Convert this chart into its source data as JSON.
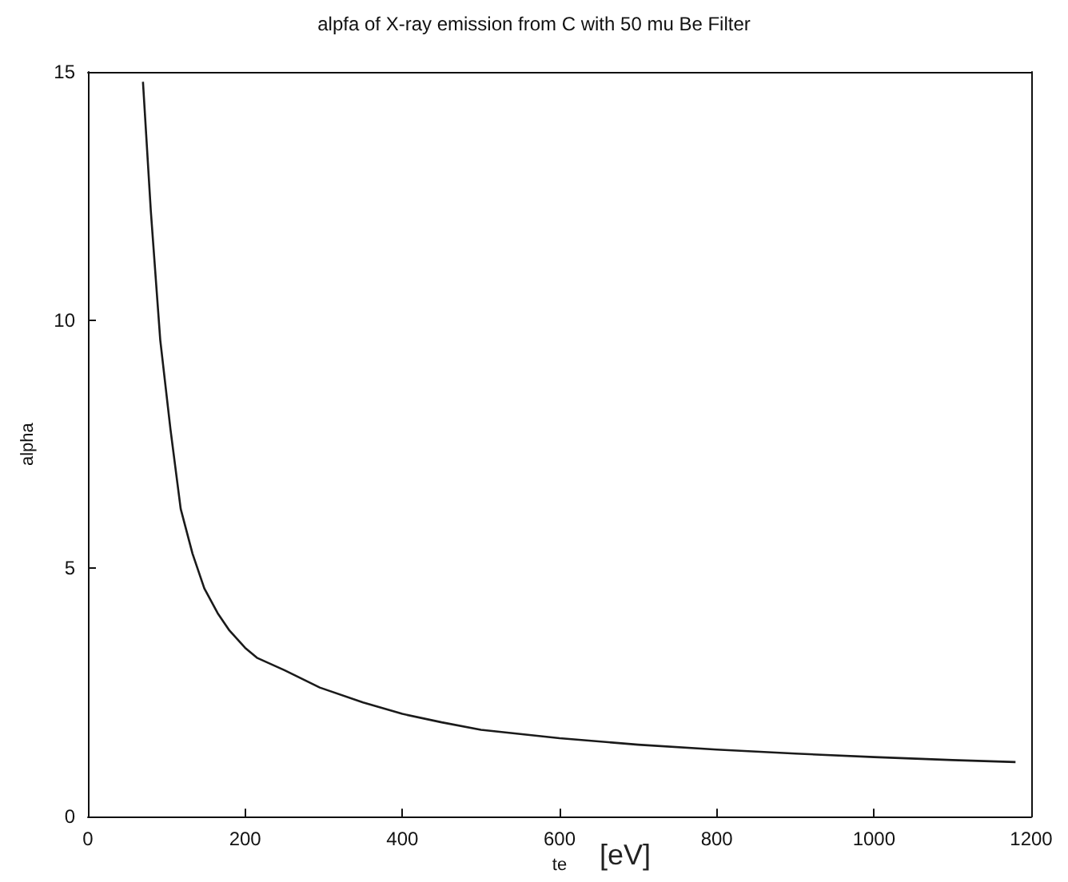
{
  "chart_data": {
    "type": "line",
    "title": "alpfa of X-ray emission from C with 50 mu Be Filter",
    "xlabel": "te",
    "ylabel": "alpha",
    "annotations": [
      "[eV]"
    ],
    "x": [
      70,
      80,
      92,
      105,
      118,
      133,
      148,
      165,
      180,
      200,
      215,
      250,
      295,
      350,
      400,
      450,
      500,
      600,
      700,
      800,
      900,
      1000,
      1100,
      1180
    ],
    "series": [
      {
        "color": "#1a1a1a",
        "values": [
          14.8,
          12.2,
          9.6,
          7.8,
          6.2,
          5.3,
          4.6,
          4.1,
          3.75,
          3.4,
          3.2,
          2.95,
          2.6,
          2.3,
          2.07,
          1.9,
          1.75,
          1.58,
          1.45,
          1.35,
          1.27,
          1.2,
          1.14,
          1.1
        ]
      }
    ],
    "xlim": [
      0,
      1200
    ],
    "xticks": [
      0,
      200,
      400,
      600,
      800,
      1000,
      1200
    ],
    "ylim": [
      0,
      15
    ],
    "yticks": [
      0,
      5,
      10,
      15
    ],
    "grid": false,
    "marker": "none",
    "line_style": "solid"
  }
}
